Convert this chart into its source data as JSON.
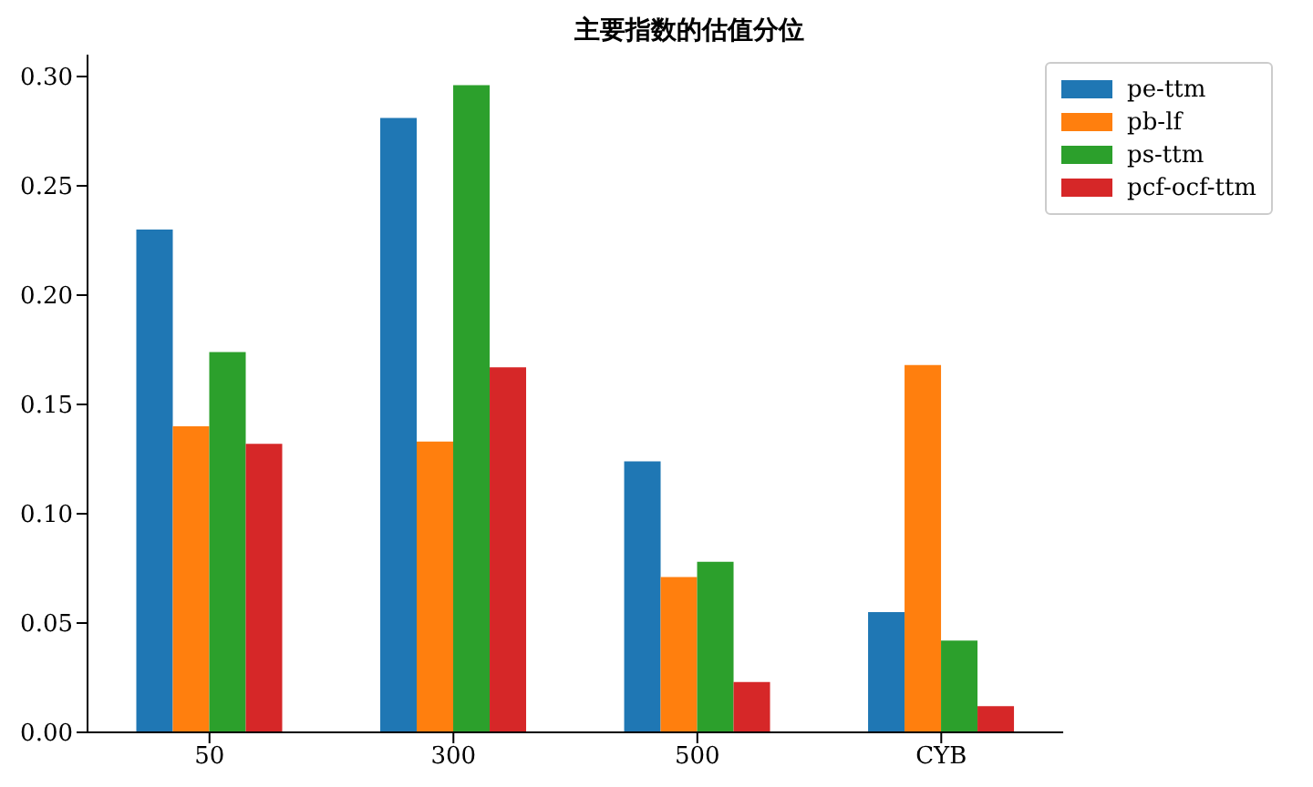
{
  "chart_data": {
    "type": "bar",
    "title": "主要指数的估值分位",
    "categories": [
      "50",
      "300",
      "500",
      "CYB"
    ],
    "series": [
      {
        "name": "pe-ttm",
        "color": "#1f77b4",
        "values": [
          0.23,
          0.281,
          0.124,
          0.055
        ]
      },
      {
        "name": "pb-lf",
        "color": "#ff7f0e",
        "values": [
          0.14,
          0.133,
          0.071,
          0.168
        ]
      },
      {
        "name": "ps-ttm",
        "color": "#2ca02c",
        "values": [
          0.174,
          0.296,
          0.078,
          0.042
        ]
      },
      {
        "name": "pcf-ocf-ttm",
        "color": "#d62728",
        "values": [
          0.132,
          0.167,
          0.023,
          0.012
        ]
      }
    ],
    "ylim": [
      0,
      0.31
    ],
    "yticks": [
      {
        "value": 0,
        "label": "0.00"
      },
      {
        "value": 0.05,
        "label": "0.05"
      },
      {
        "value": 0.1,
        "label": "0.10"
      },
      {
        "value": 0.15,
        "label": "0.15"
      },
      {
        "value": 0.2,
        "label": "0.20"
      },
      {
        "value": 0.25,
        "label": "0.25"
      },
      {
        "value": 0.3,
        "label": "0.30"
      }
    ],
    "grid": false,
    "legend": "top right"
  }
}
